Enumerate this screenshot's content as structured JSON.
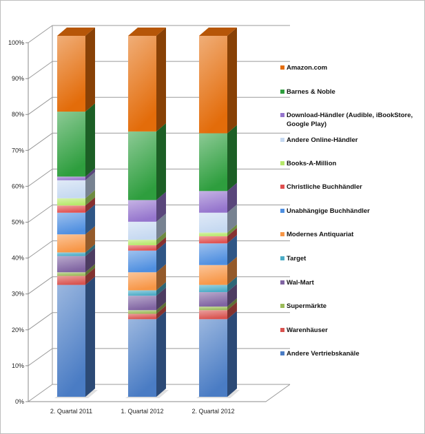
{
  "chart_data": {
    "type": "bar",
    "stacked": true,
    "percent": true,
    "three_d": true,
    "categories": [
      "2. Quartal 2011",
      "1. Quartal 2012",
      "2. Quartal 2012"
    ],
    "ylim": [
      0,
      100
    ],
    "yticks": [
      "0%",
      "10%",
      "20%",
      "30%",
      "40%",
      "50%",
      "60%",
      "70%",
      "80%",
      "90%",
      "100%"
    ],
    "grid": true,
    "legend_position": "right",
    "series": [
      {
        "name": "Andere Vertriebskanäle",
        "color": "#4a7cc4",
        "values": [
          31,
          21.5,
          21.5
        ]
      },
      {
        "name": "Warenhäuser",
        "color": "#d9534f",
        "values": [
          2.5,
          1.5,
          2.5
        ]
      },
      {
        "name": "Supermärkte",
        "color": "#9bbb59",
        "values": [
          1,
          1,
          1
        ]
      },
      {
        "name": "Wal-Mart",
        "color": "#8064a2",
        "values": [
          4.5,
          4,
          4
        ]
      },
      {
        "name": "Target",
        "color": "#4bacc6",
        "values": [
          1,
          1.5,
          2
        ]
      },
      {
        "name": "Modernes Antiquariat",
        "color": "#f79646",
        "values": [
          5,
          5,
          5.5
        ]
      },
      {
        "name": "Unabhängige Buchhändler",
        "color": "#4f8fe0",
        "values": [
          6,
          6,
          6
        ]
      },
      {
        "name": "Christliche Buchhändler",
        "color": "#e05050",
        "values": [
          2,
          1.5,
          2
        ]
      },
      {
        "name": "Books-A-Million",
        "color": "#b6e86a",
        "values": [
          2,
          1.5,
          1
        ]
      },
      {
        "name": "Andere Online-Händler",
        "color": "#c6d9f1",
        "values": [
          5,
          5,
          5.5
        ]
      },
      {
        "name": "Download-Händler (Audible, iBookStore, Google Play)",
        "color": "#9575cd",
        "values": [
          1,
          6,
          6
        ]
      },
      {
        "name": "Barnes & Noble",
        "color": "#2e9e3e",
        "values": [
          18,
          19,
          16
        ]
      },
      {
        "name": "Amazon.com",
        "color": "#e36c0a",
        "values": [
          21,
          26.5,
          27
        ]
      }
    ]
  }
}
